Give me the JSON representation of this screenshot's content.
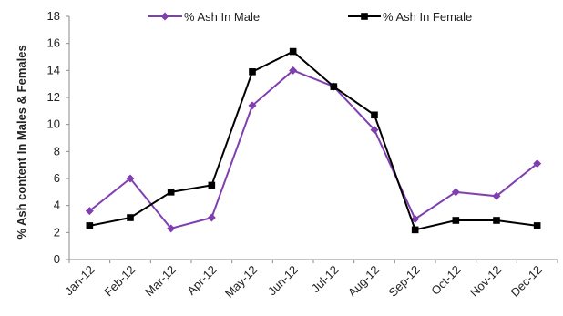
{
  "chart_data": {
    "type": "line",
    "title": "",
    "xlabel": "",
    "ylabel": "% Ash content In Males & Females",
    "categories": [
      "Jan-12",
      "Feb-12",
      "Mar-12",
      "Apr-12",
      "May-12",
      "Jun-12",
      "Jul-12",
      "Aug-12",
      "Sep-12",
      "Oct-12",
      "Nov-12",
      "Dec-12"
    ],
    "ylim": [
      0,
      18
    ],
    "yticks": [
      "0",
      "2",
      "4",
      "6",
      "8",
      "10",
      "12",
      "14",
      "16",
      "18"
    ],
    "grid": false,
    "legend_position": "top",
    "series": [
      {
        "name": "% Ash In Male",
        "color": "#7F3FB0",
        "marker": "diamond",
        "values": [
          3.6,
          6.0,
          2.3,
          3.1,
          11.4,
          14.0,
          12.8,
          9.6,
          3.0,
          5.0,
          4.7,
          7.1
        ]
      },
      {
        "name": "% Ash In Female",
        "color": "#000000",
        "marker": "square",
        "values": [
          2.5,
          3.1,
          5.0,
          5.5,
          13.9,
          15.4,
          12.8,
          10.7,
          2.2,
          2.9,
          2.9,
          2.5
        ]
      }
    ]
  }
}
